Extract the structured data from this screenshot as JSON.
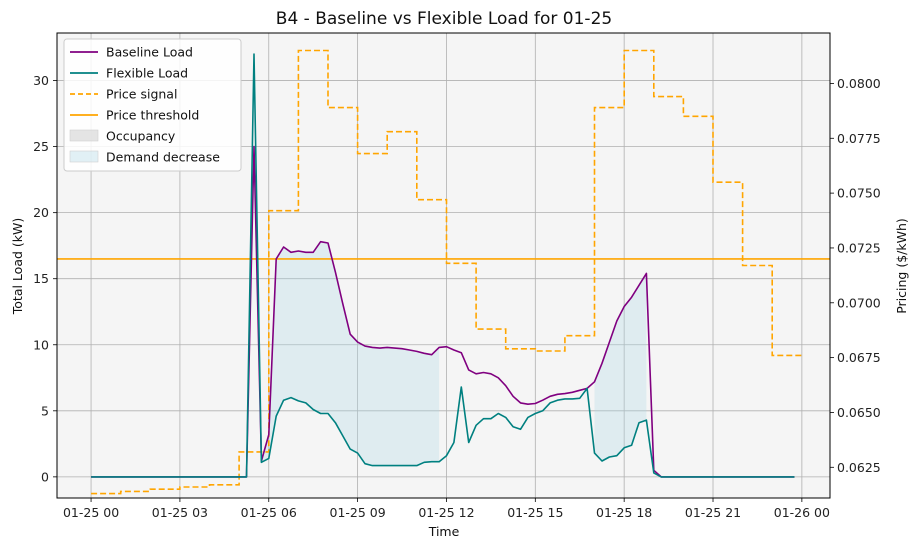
{
  "chart_data": {
    "type": "line",
    "title": "B4 - Baseline vs Flexible Load for 01-25",
    "xlabel": "Time",
    "ylabel_left": "Total Load (kW)",
    "ylabel_right": "Pricing ($/kWh)",
    "ylim_left": [
      -1.6,
      33.6
    ],
    "ylim_right": [
      0.0611,
      0.0823
    ],
    "xlim_hours": [
      -1.15,
      24.95
    ],
    "grid": true,
    "legend_position": "top-left",
    "xticks": [
      {
        "h": 0,
        "label": "01-25 00"
      },
      {
        "h": 3,
        "label": "01-25 03"
      },
      {
        "h": 6,
        "label": "01-25 06"
      },
      {
        "h": 9,
        "label": "01-25 09"
      },
      {
        "h": 12,
        "label": "01-25 12"
      },
      {
        "h": 15,
        "label": "01-25 15"
      },
      {
        "h": 18,
        "label": "01-25 18"
      },
      {
        "h": 21,
        "label": "01-25 21"
      },
      {
        "h": 24,
        "label": "01-26 00"
      }
    ],
    "yticks_left": [
      {
        "v": 0,
        "label": "0"
      },
      {
        "v": 5,
        "label": "5"
      },
      {
        "v": 10,
        "label": "10"
      },
      {
        "v": 15,
        "label": "15"
      },
      {
        "v": 20,
        "label": "20"
      },
      {
        "v": 25,
        "label": "25"
      },
      {
        "v": 30,
        "label": "30"
      }
    ],
    "yticks_right": [
      {
        "v": 0.0625,
        "label": "0.0625"
      },
      {
        "v": 0.065,
        "label": "0.0650"
      },
      {
        "v": 0.0675,
        "label": "0.0675"
      },
      {
        "v": 0.07,
        "label": "0.0700"
      },
      {
        "v": 0.0725,
        "label": "0.0725"
      },
      {
        "v": 0.075,
        "label": "0.0750"
      },
      {
        "v": 0.0775,
        "label": "0.0775"
      },
      {
        "v": 0.08,
        "label": "0.0800"
      }
    ],
    "price_threshold": 0.072,
    "colors": {
      "baseline": "#800080",
      "flexible": "#008080",
      "price": "#FFA500",
      "threshold": "#FFA500",
      "occupancy": "#dddddd",
      "demand_decrease": "#add8e6",
      "plot_bg": "#f5f5f5"
    },
    "legend": [
      {
        "label": "Baseline Load",
        "kind": "line",
        "color": "#800080"
      },
      {
        "label": "Flexible Load",
        "kind": "line",
        "color": "#008080"
      },
      {
        "label": "Price signal",
        "kind": "dashed",
        "color": "#FFA500"
      },
      {
        "label": "Price threshold",
        "kind": "line",
        "color": "#FFA500"
      },
      {
        "label": "Occupancy",
        "kind": "patch",
        "color": "#dddddd"
      },
      {
        "label": "Demand decrease",
        "kind": "patch",
        "color": "#add8e6"
      }
    ],
    "series": [
      {
        "name": "Baseline Load",
        "axis": "left",
        "x": [
          0,
          0.25,
          0.5,
          0.75,
          1,
          1.25,
          1.5,
          1.75,
          2,
          2.25,
          2.5,
          2.75,
          3,
          3.25,
          3.5,
          3.75,
          4,
          4.25,
          4.5,
          4.75,
          5,
          5.25,
          5.5,
          5.75,
          6,
          6.25,
          6.5,
          6.75,
          7,
          7.25,
          7.5,
          7.75,
          8,
          8.25,
          8.5,
          8.75,
          9,
          9.25,
          9.5,
          9.75,
          10,
          10.25,
          10.5,
          10.75,
          11,
          11.25,
          11.5,
          11.75,
          12,
          12.25,
          12.5,
          12.75,
          13,
          13.25,
          13.5,
          13.75,
          14,
          14.25,
          14.5,
          14.75,
          15,
          15.25,
          15.5,
          15.75,
          16,
          16.25,
          16.5,
          16.75,
          17,
          17.25,
          17.5,
          17.75,
          18,
          18.25,
          18.5,
          18.75,
          19,
          19.25,
          19.5,
          19.75,
          20,
          20.25,
          20.5,
          20.75,
          21,
          21.25,
          21.5,
          21.75,
          22,
          22.25,
          22.5,
          22.75,
          23,
          23.25,
          23.5,
          23.75
        ],
        "y": [
          0,
          0,
          0,
          0,
          0,
          0,
          0,
          0,
          0,
          0,
          0,
          0,
          0,
          0,
          0,
          0,
          0,
          0,
          0,
          0,
          0,
          0,
          25,
          1.2,
          3.2,
          16.5,
          17.4,
          17,
          17.1,
          17,
          17,
          17.8,
          17.7,
          15.5,
          13.1,
          10.8,
          10.2,
          9.9,
          9.8,
          9.75,
          9.8,
          9.75,
          9.7,
          9.6,
          9.5,
          9.35,
          9.25,
          9.8,
          9.85,
          9.6,
          9.4,
          8.1,
          7.8,
          7.9,
          7.8,
          7.5,
          6.9,
          6.1,
          5.6,
          5.5,
          5.55,
          5.8,
          6.1,
          6.25,
          6.3,
          6.4,
          6.55,
          6.7,
          7.2,
          8.6,
          10.2,
          11.8,
          12.9,
          13.6,
          14.5,
          15.4,
          0.5,
          0,
          0,
          0,
          0,
          0,
          0,
          0,
          0,
          0,
          0,
          0,
          0,
          0,
          0,
          0,
          0,
          0,
          0,
          0
        ]
      },
      {
        "name": "Flexible Load",
        "axis": "left",
        "x": [
          0,
          0.25,
          0.5,
          0.75,
          1,
          1.25,
          1.5,
          1.75,
          2,
          2.25,
          2.5,
          2.75,
          3,
          3.25,
          3.5,
          3.75,
          4,
          4.25,
          4.5,
          4.75,
          5,
          5.25,
          5.5,
          5.75,
          6,
          6.25,
          6.5,
          6.75,
          7,
          7.25,
          7.5,
          7.75,
          8,
          8.25,
          8.5,
          8.75,
          9,
          9.25,
          9.5,
          9.75,
          10,
          10.25,
          10.5,
          10.75,
          11,
          11.25,
          11.5,
          11.75,
          12,
          12.25,
          12.5,
          12.75,
          13,
          13.25,
          13.5,
          13.75,
          14,
          14.25,
          14.5,
          14.75,
          15,
          15.25,
          15.5,
          15.75,
          16,
          16.25,
          16.5,
          16.75,
          17,
          17.25,
          17.5,
          17.75,
          18,
          18.25,
          18.5,
          18.75,
          19,
          19.25,
          19.5,
          19.75,
          20,
          20.25,
          20.5,
          20.75,
          21,
          21.25,
          21.5,
          21.75,
          22,
          22.25,
          22.5,
          22.75,
          23,
          23.25,
          23.5,
          23.75
        ],
        "y": [
          0,
          0,
          0,
          0,
          0,
          0,
          0,
          0,
          0,
          0,
          0,
          0,
          0,
          0,
          0,
          0,
          0,
          0,
          0,
          0,
          0,
          0,
          32,
          1.1,
          1.4,
          4.6,
          5.8,
          6,
          5.75,
          5.6,
          5.1,
          4.8,
          4.8,
          4.1,
          3.1,
          2.1,
          1.8,
          1,
          0.85,
          0.85,
          0.85,
          0.85,
          0.85,
          0.85,
          0.85,
          1.1,
          1.15,
          1.15,
          1.6,
          2.6,
          6.8,
          2.6,
          3.9,
          4.4,
          4.4,
          4.8,
          4.5,
          3.8,
          3.6,
          4.5,
          4.8,
          5,
          5.6,
          5.8,
          5.9,
          5.9,
          5.95,
          6.7,
          1.8,
          1.2,
          1.5,
          1.6,
          2.2,
          2.4,
          4.1,
          4.3,
          0.3,
          0,
          0,
          0,
          0,
          0,
          0,
          0,
          0,
          0,
          0,
          0,
          0,
          0,
          0,
          0,
          0,
          0,
          0,
          0
        ]
      },
      {
        "name": "Price signal",
        "axis": "right",
        "x": [
          0,
          1,
          1,
          2,
          2,
          3,
          3,
          4,
          4,
          5,
          5,
          6,
          6,
          7,
          7,
          8,
          8,
          9,
          9,
          10,
          10,
          11,
          11,
          12,
          12,
          13,
          13,
          14,
          14,
          15,
          15,
          16,
          16,
          17,
          17,
          18,
          18,
          19,
          19,
          20,
          20,
          21,
          21,
          22,
          22,
          23,
          23,
          24
        ],
        "y": [
          0.0613,
          0.0613,
          0.0614,
          0.0614,
          0.0615,
          0.0615,
          0.0616,
          0.0616,
          0.0617,
          0.0617,
          0.0632,
          0.0632,
          0.0742,
          0.0742,
          0.0815,
          0.0815,
          0.0789,
          0.0789,
          0.0768,
          0.0768,
          0.0778,
          0.0778,
          0.0747,
          0.0747,
          0.0718,
          0.0718,
          0.0688,
          0.0688,
          0.0679,
          0.0679,
          0.0678,
          0.0678,
          0.0685,
          0.0685,
          0.0789,
          0.0789,
          0.0815,
          0.0815,
          0.0794,
          0.0794,
          0.0785,
          0.0785,
          0.0755,
          0.0755,
          0.0717,
          0.0717,
          0.0676,
          0.0676
        ]
      }
    ],
    "demand_decrease_regions": [
      {
        "start": 5.75,
        "end": 11.75
      },
      {
        "start": 17,
        "end": 18.75
      }
    ]
  }
}
